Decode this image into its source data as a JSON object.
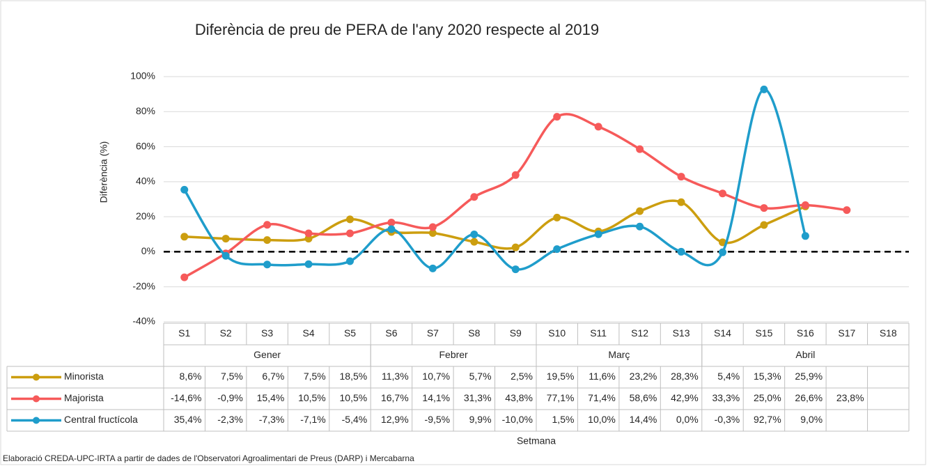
{
  "chart_data": {
    "type": "line",
    "title": "Diferència de preu de PERA de l'any 2020 respecte al 2019",
    "y_label": "Diferència (%)",
    "x_label": "Setmana",
    "footnote": "Elaboració CREDA-UPC-IRTA a partir de dades de l'Observatori Agroalimentari de Preus (DARP) i Mercabarna",
    "categories": [
      "S1",
      "S2",
      "S3",
      "S4",
      "S5",
      "S6",
      "S7",
      "S8",
      "S9",
      "S10",
      "S11",
      "S12",
      "S13",
      "S14",
      "S15",
      "S16",
      "S17",
      "S18"
    ],
    "groups": [
      {
        "label": "Gener",
        "categories": [
          "S1",
          "S2",
          "S3",
          "S4",
          "S5"
        ]
      },
      {
        "label": "Febrer",
        "categories": [
          "S6",
          "S7",
          "S8",
          "S9"
        ]
      },
      {
        "label": "Març",
        "categories": [
          "S10",
          "S11",
          "S12",
          "S13"
        ]
      },
      {
        "label": "Abril",
        "categories": [
          "S14",
          "S15",
          "S16",
          "S17",
          "S18"
        ]
      }
    ],
    "ylim": [
      -40,
      100
    ],
    "yticks": [
      {
        "value": -40,
        "label": "-40%"
      },
      {
        "value": -20,
        "label": "-20%"
      },
      {
        "value": 0,
        "label": "0%"
      },
      {
        "value": 20,
        "label": "20%"
      },
      {
        "value": 40,
        "label": "40%"
      },
      {
        "value": 60,
        "label": "60%"
      },
      {
        "value": 80,
        "label": "80%"
      },
      {
        "value": 100,
        "label": "100%"
      }
    ],
    "grid": true,
    "smooth": true,
    "series": [
      {
        "name": "Minorista",
        "color": "#cc9e0f",
        "values": [
          8.6,
          7.5,
          6.7,
          7.5,
          18.5,
          11.3,
          10.7,
          5.7,
          2.5,
          19.5,
          11.6,
          23.2,
          28.3,
          5.4,
          15.3,
          25.9,
          null,
          null
        ],
        "value_labels": [
          "8,6%",
          "7,5%",
          "6,7%",
          "7,5%",
          "18,5%",
          "11,3%",
          "10,7%",
          "5,7%",
          "2,5%",
          "19,5%",
          "11,6%",
          "23,2%",
          "28,3%",
          "5,4%",
          "15,3%",
          "25,9%",
          null,
          null
        ]
      },
      {
        "name": "Majorista",
        "color": "#f65a5a",
        "values": [
          -14.6,
          -0.9,
          15.4,
          10.5,
          10.5,
          16.7,
          14.1,
          31.3,
          43.8,
          77.1,
          71.4,
          58.6,
          42.9,
          33.3,
          25.0,
          26.6,
          23.8,
          null
        ],
        "value_labels": [
          "-14,6%",
          "-0,9%",
          "15,4%",
          "10,5%",
          "10,5%",
          "16,7%",
          "14,1%",
          "31,3%",
          "43,8%",
          "77,1%",
          "71,4%",
          "58,6%",
          "42,9%",
          "33,3%",
          "25,0%",
          "26,6%",
          "23,8%",
          null
        ]
      },
      {
        "name": "Central fructícola",
        "color": "#1f9dcb",
        "values": [
          35.4,
          -2.3,
          -7.3,
          -7.1,
          -5.4,
          12.9,
          -9.5,
          9.9,
          -10.0,
          1.5,
          10.0,
          14.4,
          0.0,
          -0.3,
          92.7,
          9.0,
          null,
          null
        ],
        "value_labels": [
          "35,4%",
          "-2,3%",
          "-7,3%",
          "-7,1%",
          "-5,4%",
          "12,9%",
          "-9,5%",
          "9,9%",
          "-10,0%",
          "1,5%",
          "10,0%",
          "14,4%",
          "0,0%",
          "-0,3%",
          "92,7%",
          "9,0%",
          null,
          null
        ]
      }
    ]
  }
}
